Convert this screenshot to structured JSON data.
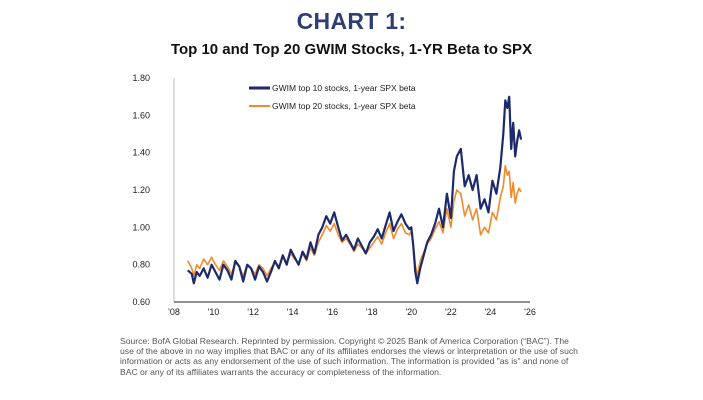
{
  "header": {
    "chart_label": "CHART 1:",
    "title": "Top 10 and Top 20 GWIM Stocks, 1-YR Beta to SPX"
  },
  "source_note": "Source: BofA Global Research. Reprinted by permission. Copyright © 2025 Bank of America Corporation (“BAC”). The use of the above in no way implies that BAC or any of its affiliates endorses the views or interpretation or the use of such information or acts as any endorsement of the use of such information. The information is provided \"as is\" and none of BAC or any of its affiliates warrants the accuracy or completeness of the information.",
  "chart_data": {
    "type": "line",
    "title": "Top 10 and Top 20 GWIM Stocks, 1-YR Beta to SPX",
    "xlabel": "",
    "ylabel": "",
    "xlim": [
      2008,
      2026
    ],
    "ylim": [
      0.6,
      1.8
    ],
    "yticks": [
      0.6,
      0.8,
      1.0,
      1.2,
      1.4,
      1.6,
      1.8
    ],
    "ytick_labels": [
      "0.60",
      "0.80",
      "1.00",
      "1.20",
      "1.40",
      "1.60",
      "1.80"
    ],
    "xticks": [
      2008,
      2010,
      2012,
      2014,
      2016,
      2018,
      2020,
      2022,
      2024,
      2026
    ],
    "xtick_labels": [
      "'08",
      "'10",
      "'12",
      "'14",
      "'16",
      "'18",
      "'20",
      "'22",
      "'24",
      "'26"
    ],
    "grid": false,
    "legend_position": "top-left",
    "series": [
      {
        "name": "GWIM top 10 stocks, 1-year SPX beta",
        "color": "#1b2a6b",
        "x": [
          2008.7,
          2008.9,
          2009.0,
          2009.15,
          2009.3,
          2009.5,
          2009.7,
          2009.9,
          2010.1,
          2010.3,
          2010.5,
          2010.7,
          2010.9,
          2011.1,
          2011.3,
          2011.5,
          2011.7,
          2011.9,
          2012.1,
          2012.3,
          2012.5,
          2012.7,
          2012.9,
          2013.1,
          2013.3,
          2013.5,
          2013.7,
          2013.9,
          2014.1,
          2014.3,
          2014.5,
          2014.7,
          2014.9,
          2015.1,
          2015.3,
          2015.5,
          2015.7,
          2015.9,
          2016.1,
          2016.3,
          2016.5,
          2016.7,
          2016.9,
          2017.1,
          2017.3,
          2017.5,
          2017.7,
          2017.9,
          2018.1,
          2018.3,
          2018.5,
          2018.7,
          2018.9,
          2019.1,
          2019.3,
          2019.5,
          2019.7,
          2019.9,
          2020.0,
          2020.1,
          2020.2,
          2020.3,
          2020.45,
          2020.6,
          2020.8,
          2021.0,
          2021.2,
          2021.4,
          2021.6,
          2021.8,
          2022.0,
          2022.15,
          2022.3,
          2022.5,
          2022.7,
          2022.9,
          2023.1,
          2023.3,
          2023.5,
          2023.7,
          2023.9,
          2024.1,
          2024.3,
          2024.5,
          2024.65,
          2024.75,
          2024.85,
          2024.95,
          2025.05,
          2025.15,
          2025.25,
          2025.35,
          2025.45,
          2025.55
        ],
        "values": [
          0.77,
          0.75,
          0.7,
          0.76,
          0.74,
          0.78,
          0.73,
          0.8,
          0.76,
          0.72,
          0.8,
          0.77,
          0.72,
          0.82,
          0.79,
          0.71,
          0.8,
          0.78,
          0.72,
          0.79,
          0.76,
          0.71,
          0.76,
          0.82,
          0.78,
          0.85,
          0.8,
          0.88,
          0.84,
          0.8,
          0.87,
          0.83,
          0.92,
          0.86,
          0.96,
          1.0,
          1.06,
          1.02,
          1.08,
          1.0,
          0.93,
          0.96,
          0.92,
          0.88,
          0.94,
          0.9,
          0.86,
          0.92,
          0.95,
          0.99,
          0.94,
          1.01,
          1.08,
          0.98,
          1.03,
          1.07,
          1.02,
          0.99,
          1.0,
          0.9,
          0.76,
          0.7,
          0.78,
          0.84,
          0.92,
          0.96,
          1.02,
          1.1,
          1.0,
          1.18,
          1.05,
          1.3,
          1.38,
          1.42,
          1.22,
          1.28,
          1.2,
          1.28,
          1.1,
          1.15,
          1.08,
          1.25,
          1.18,
          1.32,
          1.5,
          1.68,
          1.64,
          1.7,
          1.42,
          1.56,
          1.38,
          1.46,
          1.52,
          1.47
        ]
      },
      {
        "name": "GWIM top 20 stocks, 1-year SPX beta",
        "color": "#f08a2c",
        "x": [
          2008.7,
          2008.9,
          2009.0,
          2009.15,
          2009.3,
          2009.5,
          2009.7,
          2009.9,
          2010.1,
          2010.3,
          2010.5,
          2010.7,
          2010.9,
          2011.1,
          2011.3,
          2011.5,
          2011.7,
          2011.9,
          2012.1,
          2012.3,
          2012.5,
          2012.7,
          2012.9,
          2013.1,
          2013.3,
          2013.5,
          2013.7,
          2013.9,
          2014.1,
          2014.3,
          2014.5,
          2014.7,
          2014.9,
          2015.1,
          2015.3,
          2015.5,
          2015.7,
          2015.9,
          2016.1,
          2016.3,
          2016.5,
          2016.7,
          2016.9,
          2017.1,
          2017.3,
          2017.5,
          2017.7,
          2017.9,
          2018.1,
          2018.3,
          2018.5,
          2018.7,
          2018.9,
          2019.1,
          2019.3,
          2019.5,
          2019.7,
          2019.9,
          2020.0,
          2020.1,
          2020.2,
          2020.3,
          2020.45,
          2020.6,
          2020.8,
          2021.0,
          2021.2,
          2021.4,
          2021.6,
          2021.8,
          2022.0,
          2022.15,
          2022.3,
          2022.5,
          2022.7,
          2022.9,
          2023.1,
          2023.3,
          2023.5,
          2023.7,
          2023.9,
          2024.1,
          2024.3,
          2024.5,
          2024.65,
          2024.75,
          2024.85,
          2024.95,
          2025.05,
          2025.15,
          2025.25,
          2025.35,
          2025.45,
          2025.55
        ],
        "values": [
          0.82,
          0.78,
          0.74,
          0.8,
          0.78,
          0.83,
          0.8,
          0.84,
          0.8,
          0.77,
          0.82,
          0.79,
          0.75,
          0.81,
          0.79,
          0.74,
          0.8,
          0.78,
          0.75,
          0.8,
          0.78,
          0.74,
          0.78,
          0.81,
          0.79,
          0.84,
          0.81,
          0.86,
          0.83,
          0.81,
          0.86,
          0.82,
          0.89,
          0.85,
          0.92,
          0.96,
          1.01,
          0.98,
          1.02,
          0.96,
          0.92,
          0.94,
          0.91,
          0.87,
          0.91,
          0.89,
          0.86,
          0.89,
          0.92,
          0.95,
          0.91,
          0.97,
          1.02,
          0.94,
          0.99,
          1.02,
          0.97,
          0.96,
          0.98,
          0.9,
          0.8,
          0.74,
          0.82,
          0.86,
          0.91,
          0.94,
          0.99,
          1.03,
          0.97,
          1.1,
          1.0,
          1.14,
          1.2,
          1.18,
          1.06,
          1.12,
          1.04,
          1.1,
          0.96,
          1.0,
          0.97,
          1.08,
          1.04,
          1.16,
          1.22,
          1.33,
          1.28,
          1.3,
          1.16,
          1.24,
          1.13,
          1.18,
          1.21,
          1.19
        ]
      }
    ]
  }
}
